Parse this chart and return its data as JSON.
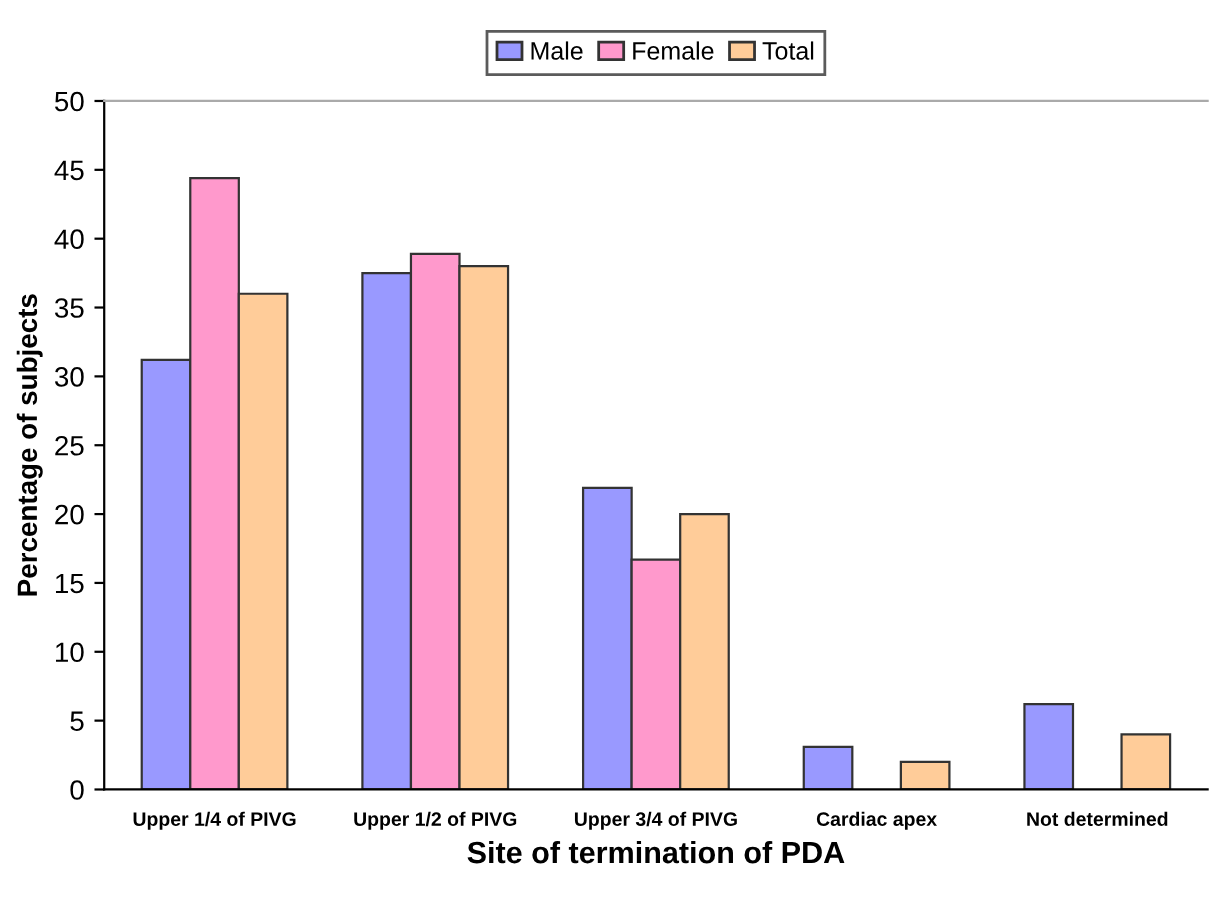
{
  "chart_data": {
    "type": "bar",
    "xlabel": "Site of termination of PDA",
    "ylabel": "Percentage of subjects",
    "categories": [
      "Upper 1/4 of PIVG",
      "Upper 1/2 of PIVG",
      "Upper 3/4 of PIVG",
      "Cardiac apex",
      "Not determined"
    ],
    "series": [
      {
        "name": "Male",
        "color": "#9999ff",
        "values": [
          31.2,
          37.5,
          21.9,
          3.1,
          6.2
        ]
      },
      {
        "name": "Female",
        "color": "#ff99cc",
        "values": [
          44.4,
          38.9,
          16.7,
          null,
          null
        ]
      },
      {
        "name": "Total",
        "color": "#ffcc99",
        "values": [
          36,
          38,
          20,
          2,
          4
        ]
      }
    ],
    "ylim": [
      0,
      50
    ],
    "yticks": [
      0,
      5,
      10,
      15,
      20,
      25,
      30,
      35,
      40,
      45,
      50
    ],
    "grid": false,
    "legend": "top"
  }
}
